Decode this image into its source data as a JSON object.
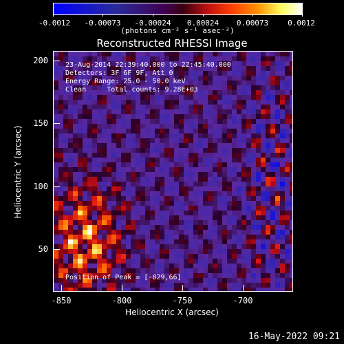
{
  "colorbar": {
    "tick_labels": [
      "-0.0012",
      "-0.00073",
      "-0.00024",
      "0.00024",
      "0.00073",
      "0.0012"
    ],
    "units": "(photons cm⁻² s⁻¹ asec⁻²)",
    "min": -0.0012,
    "max": 0.0012
  },
  "title": "Reconstructed RHESSI Image",
  "annotations": {
    "time_range": "23-Aug-2014 22:39:40.000 to 22:45:40.000",
    "detectors": "Detectors: 3F 6F 9F, Att 0",
    "energy_range": "Energy Range: 25.0 - 50.0 keV",
    "clean": "Clean     Total counts: 9.28E+03",
    "peak": "Position of Peak = [-829,66]"
  },
  "axes": {
    "xlabel": "Heliocentric X (arcsec)",
    "ylabel": "Heliocentric Y (arcsec)",
    "x_ticks": [
      "-850",
      "-800",
      "-750",
      "-700"
    ],
    "y_ticks": [
      "200",
      "150",
      "100",
      "50"
    ],
    "xlim": [
      -866,
      -668
    ],
    "ylim": [
      16,
      215
    ]
  },
  "timestamp": "16-May-2022 09:21"
}
